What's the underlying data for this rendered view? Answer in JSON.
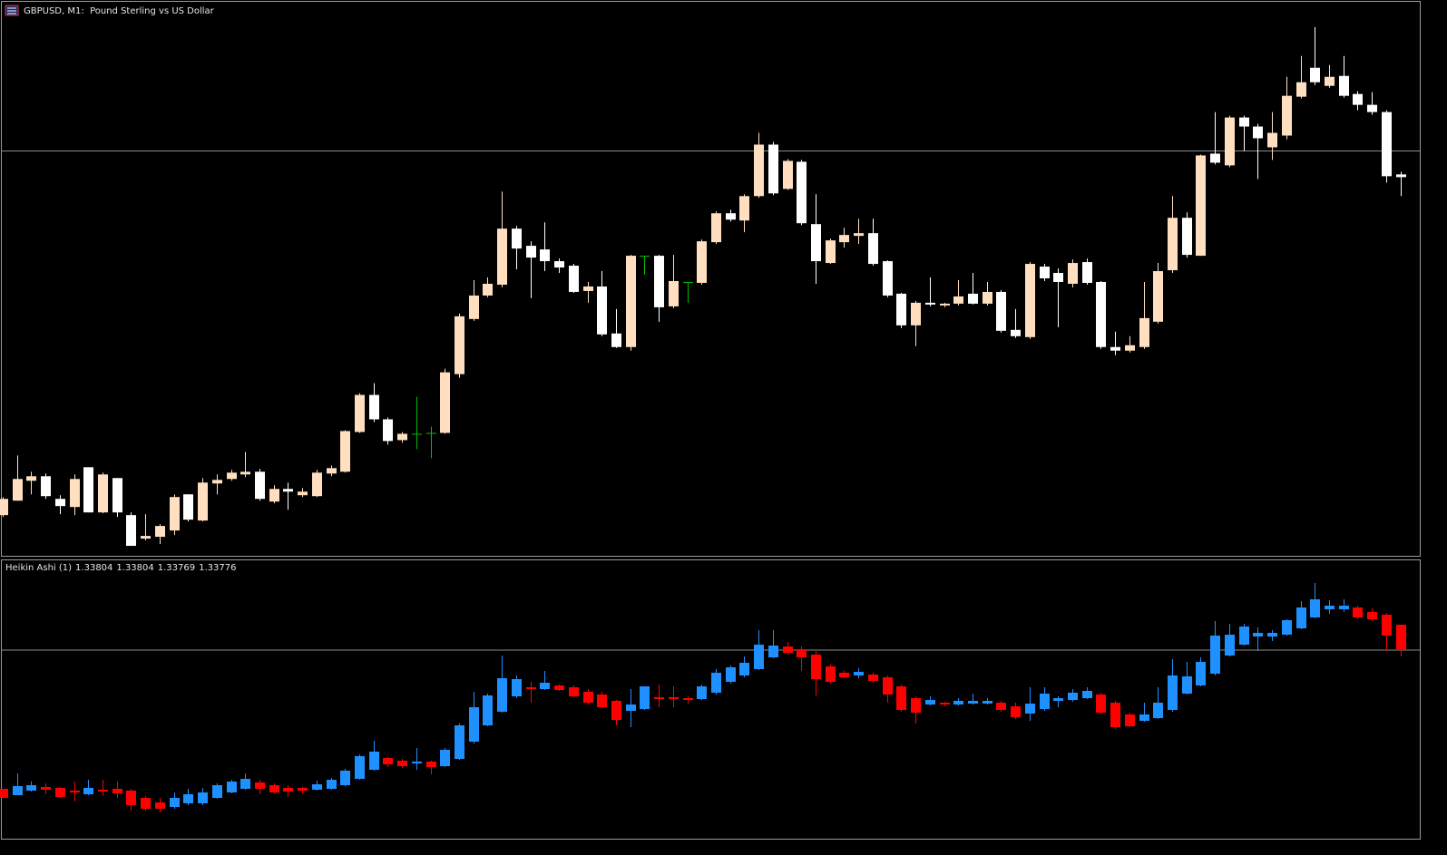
{
  "chart_data": [
    {
      "type": "candlestick",
      "title": "GBPUSD, M1:  Pound Sterling vs US Dollar",
      "ylim": [
        1.33388,
        1.34
      ],
      "price_line": 1.33835,
      "colors": {
        "up": "#ffdfbf",
        "down": "#ffffff",
        "flat": "#00c000"
      },
      "open": [
        1.33432,
        1.33448,
        1.3347,
        1.33475,
        1.3345,
        1.33441,
        1.33485,
        1.33435,
        1.33473,
        1.33432,
        1.33406,
        1.33408,
        1.33415,
        1.33455,
        1.33426,
        1.33467,
        1.33472,
        1.33477,
        1.3348,
        1.33447,
        1.33461,
        1.33454,
        1.33453,
        1.33478,
        1.3348,
        1.33524,
        1.33565,
        1.33538,
        1.33515,
        1.33522,
        1.33523,
        1.33523,
        1.33588,
        1.33649,
        1.33675,
        1.33687,
        1.33749,
        1.3373,
        1.33726,
        1.33713,
        1.33708,
        1.3368,
        1.33685,
        1.33633,
        1.33618,
        1.33719,
        1.33719,
        1.33663,
        1.3369,
        1.33689,
        1.33734,
        1.33766,
        1.33758,
        1.33785,
        1.33842,
        1.33793,
        1.33823,
        1.33754,
        1.33711,
        1.33734,
        1.33741,
        1.33744,
        1.33713,
        1.33677,
        1.33642,
        1.33667,
        1.33664,
        1.33666,
        1.33677,
        1.33666,
        1.33679,
        1.33637,
        1.33629,
        1.33707,
        1.337,
        1.33688,
        1.33712,
        1.3369,
        1.33618,
        1.33614,
        1.33618,
        1.33646,
        1.33703,
        1.33761,
        1.33719,
        1.33832,
        1.33819,
        1.33872,
        1.33862,
        1.33839,
        1.33852,
        1.33895,
        1.33927,
        1.33907,
        1.33918,
        1.33898,
        1.33886,
        1.33878,
        1.33809
      ],
      "high": [
        1.33452,
        1.33498,
        1.3348,
        1.33478,
        1.33454,
        1.33477,
        1.33485,
        1.33479,
        1.33473,
        1.33435,
        1.33433,
        1.33422,
        1.33455,
        1.33455,
        1.33473,
        1.33477,
        1.33482,
        1.33502,
        1.33483,
        1.33465,
        1.33468,
        1.33462,
        1.33482,
        1.33487,
        1.33526,
        1.33567,
        1.33578,
        1.3354,
        1.33524,
        1.33563,
        1.3353,
        1.33594,
        1.33655,
        1.33692,
        1.33695,
        1.3379,
        1.33752,
        1.33735,
        1.33756,
        1.33716,
        1.3371,
        1.3369,
        1.33702,
        1.3366,
        1.3372,
        1.33719,
        1.3372,
        1.3372,
        1.3369,
        1.33737,
        1.33768,
        1.3377,
        1.33787,
        1.33855,
        1.33845,
        1.33826,
        1.33825,
        1.33787,
        1.33738,
        1.3375,
        1.3376,
        1.3376,
        1.33714,
        1.33678,
        1.33669,
        1.33695,
        1.33667,
        1.33692,
        1.337,
        1.3369,
        1.33681,
        1.3366,
        1.33712,
        1.3371,
        1.33705,
        1.33715,
        1.33716,
        1.33691,
        1.33635,
        1.3363,
        1.3369,
        1.33711,
        1.33785,
        1.33767,
        1.33831,
        1.33878,
        1.33874,
        1.33874,
        1.33865,
        1.33878,
        1.33917,
        1.3394,
        1.33972,
        1.3393,
        1.3394,
        1.33901,
        1.339,
        1.3388,
        1.33812
      ],
      "low": [
        1.3343,
        1.33448,
        1.33455,
        1.3345,
        1.33433,
        1.33432,
        1.33435,
        1.33434,
        1.3343,
        1.33398,
        1.33404,
        1.334,
        1.3341,
        1.33425,
        1.33425,
        1.33455,
        1.3347,
        1.33474,
        1.33448,
        1.33445,
        1.33438,
        1.33452,
        1.33452,
        1.33475,
        1.33479,
        1.33523,
        1.33535,
        1.3351,
        1.33512,
        1.33505,
        1.33495,
        1.33522,
        1.33584,
        1.33647,
        1.33673,
        1.33684,
        1.33704,
        1.33672,
        1.33702,
        1.337,
        1.33678,
        1.33667,
        1.3363,
        1.33617,
        1.33614,
        1.33698,
        1.33646,
        1.33661,
        1.33667,
        1.33687,
        1.33732,
        1.33757,
        1.33745,
        1.33783,
        1.33786,
        1.33792,
        1.33753,
        1.33688,
        1.3371,
        1.33728,
        1.33732,
        1.33708,
        1.33673,
        1.33639,
        1.33619,
        1.33663,
        1.33662,
        1.33664,
        1.33665,
        1.33664,
        1.33634,
        1.33628,
        1.33627,
        1.33691,
        1.3364,
        1.33684,
        1.33687,
        1.33616,
        1.33609,
        1.33612,
        1.33616,
        1.33644,
        1.337,
        1.33717,
        1.33719,
        1.3382,
        1.33817,
        1.33835,
        1.33804,
        1.33825,
        1.33848,
        1.33893,
        1.33908,
        1.33905,
        1.33894,
        1.3388,
        1.33875,
        1.338,
        1.33785
      ],
      "close": [
        1.3345,
        1.33472,
        1.33475,
        1.33453,
        1.33442,
        1.33472,
        1.33435,
        1.33477,
        1.33435,
        1.33398,
        1.33409,
        1.3342,
        1.33452,
        1.33427,
        1.33468,
        1.33471,
        1.33479,
        1.3348,
        1.3345,
        1.33461,
        1.33458,
        1.33458,
        1.33479,
        1.33484,
        1.33525,
        1.33565,
        1.33538,
        1.33514,
        1.33522,
        1.33522,
        1.33523,
        1.3359,
        1.33652,
        1.33675,
        1.33688,
        1.33749,
        1.33727,
        1.33717,
        1.33713,
        1.33706,
        1.33679,
        1.33685,
        1.33632,
        1.33618,
        1.33719,
        1.33719,
        1.33662,
        1.33691,
        1.3369,
        1.33735,
        1.33766,
        1.33759,
        1.33785,
        1.33842,
        1.33788,
        1.33824,
        1.33755,
        1.33713,
        1.33736,
        1.33742,
        1.33744,
        1.3371,
        1.33675,
        1.33642,
        1.33667,
        1.33665,
        1.33666,
        1.33674,
        1.33666,
        1.33679,
        1.33636,
        1.3363,
        1.3371,
        1.33694,
        1.3369,
        1.33711,
        1.33689,
        1.33618,
        1.33614,
        1.3362,
        1.3365,
        1.33702,
        1.33761,
        1.3372,
        1.3383,
        1.33822,
        1.33872,
        1.33862,
        1.33849,
        1.33855,
        1.33896,
        1.33911,
        1.33911,
        1.33917,
        1.33896,
        1.33886,
        1.33878,
        1.33807,
        1.33806
      ]
    },
    {
      "type": "candlestick",
      "title": "Heikin Ashi (1)",
      "ylim": [
        1.33568,
        1.33875
      ],
      "price_line": 1.33776,
      "colors": {
        "up": "#1e90ff",
        "down": "#ff0000"
      },
      "open": [
        1.33623,
        1.33616,
        1.33621,
        1.33625,
        1.33624,
        1.33621,
        1.33617,
        1.33622,
        1.33623,
        1.33621,
        1.33613,
        1.33608,
        1.33603,
        1.33607,
        1.33607,
        1.33613,
        1.33619,
        1.33623,
        1.3363,
        1.33627,
        1.33624,
        1.33624,
        1.33622,
        1.33623,
        1.33627,
        1.33634,
        1.33644,
        1.33657,
        1.33654,
        1.33651,
        1.33653,
        1.33648,
        1.33656,
        1.33675,
        1.33693,
        1.33708,
        1.33725,
        1.33735,
        1.33733,
        1.33737,
        1.33735,
        1.3373,
        1.33727,
        1.3372,
        1.33709,
        1.33711,
        1.33724,
        1.33724,
        1.33723,
        1.33722,
        1.33729,
        1.33741,
        1.33748,
        1.33755,
        1.33768,
        1.3378,
        1.33777,
        1.33771,
        1.33758,
        1.33751,
        1.33748,
        1.33749,
        1.33746,
        1.33736,
        1.33723,
        1.33716,
        1.33718,
        1.33716,
        1.33717,
        1.33717,
        1.33718,
        1.33714,
        1.33706,
        1.33711,
        1.3372,
        1.33721,
        1.33723,
        1.33727,
        1.33718,
        1.33705,
        1.33698,
        1.33701,
        1.3371,
        1.33728,
        1.33737,
        1.3375,
        1.3377,
        1.33782,
        1.33791,
        1.33791,
        1.33793,
        1.338,
        1.33812,
        1.33821,
        1.33821,
        1.33823,
        1.33818,
        1.33815,
        1.33804
      ],
      "high": [
        1.33623,
        1.3364,
        1.33631,
        1.33629,
        1.33625,
        1.33631,
        1.33633,
        1.33633,
        1.33631,
        1.33623,
        1.33615,
        1.33613,
        1.33619,
        1.33623,
        1.33624,
        1.33629,
        1.33633,
        1.3364,
        1.33633,
        1.33629,
        1.33627,
        1.33625,
        1.33632,
        1.33635,
        1.33645,
        1.33661,
        1.33676,
        1.33658,
        1.33656,
        1.33668,
        1.33654,
        1.33668,
        1.33695,
        1.3373,
        1.33728,
        1.3377,
        1.33748,
        1.33741,
        1.33753,
        1.33738,
        1.33737,
        1.33733,
        1.3373,
        1.33721,
        1.33733,
        1.33736,
        1.33738,
        1.33736,
        1.33725,
        1.33738,
        1.33755,
        1.33759,
        1.33769,
        1.33798,
        1.33798,
        1.33785,
        1.3378,
        1.33775,
        1.3376,
        1.33753,
        1.33756,
        1.33751,
        1.33748,
        1.33738,
        1.33725,
        1.33725,
        1.33719,
        1.33723,
        1.33728,
        1.33723,
        1.3372,
        1.33718,
        1.33735,
        1.33735,
        1.33725,
        1.33733,
        1.33735,
        1.33729,
        1.3372,
        1.33707,
        1.33718,
        1.33735,
        1.33766,
        1.33763,
        1.33768,
        1.33808,
        1.33805,
        1.33805,
        1.33801,
        1.33798,
        1.3381,
        1.3383,
        1.3385,
        1.33831,
        1.33832,
        1.33825,
        1.33822,
        1.33817,
        1.33804
      ],
      "low": [
        1.33613,
        1.33616,
        1.3362,
        1.33617,
        1.33613,
        1.33609,
        1.33616,
        1.33615,
        1.33613,
        1.33599,
        1.33599,
        1.33597,
        1.33601,
        1.33605,
        1.33605,
        1.33612,
        1.33618,
        1.33622,
        1.33617,
        1.33618,
        1.33614,
        1.33618,
        1.33621,
        1.33622,
        1.33626,
        1.33633,
        1.33643,
        1.33647,
        1.33646,
        1.33644,
        1.33639,
        1.33647,
        1.33655,
        1.33673,
        1.33692,
        1.33707,
        1.33723,
        1.33718,
        1.33732,
        1.33731,
        1.33724,
        1.33716,
        1.33712,
        1.33693,
        1.33691,
        1.3371,
        1.33713,
        1.33713,
        1.33717,
        1.33721,
        1.33727,
        1.33739,
        1.33746,
        1.33754,
        1.33767,
        1.33771,
        1.33753,
        1.33726,
        1.33739,
        1.33745,
        1.33745,
        1.3374,
        1.33718,
        1.33708,
        1.33695,
        1.33715,
        1.33714,
        1.33715,
        1.33716,
        1.33716,
        1.33708,
        1.337,
        1.33698,
        1.33709,
        1.33713,
        1.33719,
        1.33722,
        1.33705,
        1.33689,
        1.33691,
        1.33697,
        1.337,
        1.33708,
        1.33727,
        1.33736,
        1.33748,
        1.33769,
        1.33781,
        1.33775,
        1.33786,
        1.33792,
        1.33799,
        1.33811,
        1.33816,
        1.33818,
        1.3381,
        1.33808,
        1.33775,
        1.33769
      ],
      "close": [
        1.33613,
        1.33626,
        1.33627,
        1.33622,
        1.33614,
        1.33619,
        1.33624,
        1.3362,
        1.33618,
        1.33605,
        1.33601,
        1.33601,
        1.33613,
        1.33617,
        1.33619,
        1.33627,
        1.33631,
        1.33634,
        1.33623,
        1.33619,
        1.3362,
        1.33621,
        1.33628,
        1.33633,
        1.33643,
        1.33659,
        1.33664,
        1.3365,
        1.33648,
        1.33653,
        1.33647,
        1.33666,
        1.33693,
        1.33713,
        1.33726,
        1.33745,
        1.33744,
        1.33733,
        1.3374,
        1.33732,
        1.33725,
        1.33718,
        1.33713,
        1.33699,
        1.33716,
        1.33736,
        1.33722,
        1.33722,
        1.33721,
        1.33736,
        1.33751,
        1.33757,
        1.33762,
        1.33782,
        1.33781,
        1.33773,
        1.33768,
        1.33744,
        1.33741,
        1.33746,
        1.33752,
        1.33742,
        1.33727,
        1.3371,
        1.33707,
        1.33721,
        1.33716,
        1.3372,
        1.3372,
        1.3372,
        1.3371,
        1.33702,
        1.33717,
        1.33728,
        1.33723,
        1.33729,
        1.33731,
        1.33707,
        1.33691,
        1.33692,
        1.33705,
        1.33718,
        1.33748,
        1.33747,
        1.33763,
        1.33792,
        1.33793,
        1.33802,
        1.33795,
        1.33795,
        1.33809,
        1.33823,
        1.33832,
        1.33825,
        1.33825,
        1.33812,
        1.3381,
        1.33792,
        1.33776
      ]
    }
  ]
}
